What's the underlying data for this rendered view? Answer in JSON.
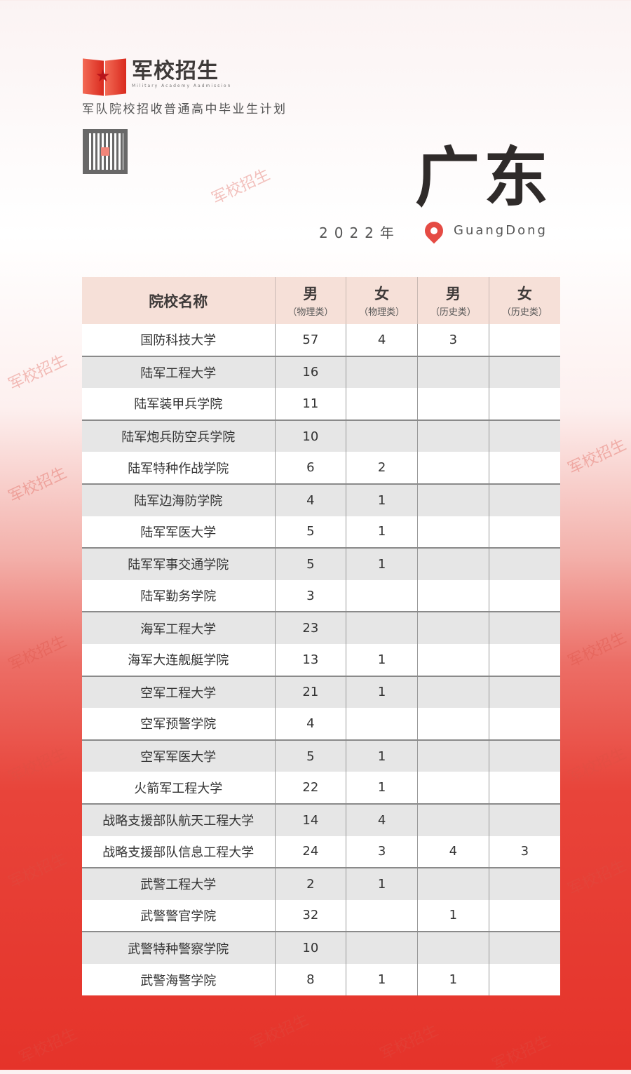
{
  "brand": {
    "name": "军校招生",
    "english": "Military Academy Aadmission",
    "subtitle": "军队院校招收普通高中毕业生计划"
  },
  "province": {
    "name": "广东",
    "year": "2022年",
    "english": "GuangDong"
  },
  "colors": {
    "accent": "#e5332a",
    "header_bg": "#f6e0d8"
  },
  "table": {
    "headers": [
      {
        "label": "院校名称"
      },
      {
        "gender": "男",
        "track": "（物理类）"
      },
      {
        "gender": "女",
        "track": "（物理类）"
      },
      {
        "gender": "男",
        "track": "（历史类）"
      },
      {
        "gender": "女",
        "track": "（历史类）"
      }
    ],
    "rows": [
      [
        "国防科技大学",
        "57",
        "4",
        "3",
        ""
      ],
      [
        "陆军工程大学",
        "16",
        "",
        "",
        ""
      ],
      [
        "陆军装甲兵学院",
        "11",
        "",
        "",
        ""
      ],
      [
        "陆军炮兵防空兵学院",
        "10",
        "",
        "",
        ""
      ],
      [
        "陆军特种作战学院",
        "6",
        "2",
        "",
        ""
      ],
      [
        "陆军边海防学院",
        "4",
        "1",
        "",
        ""
      ],
      [
        "陆军军医大学",
        "5",
        "1",
        "",
        ""
      ],
      [
        "陆军军事交通学院",
        "5",
        "1",
        "",
        ""
      ],
      [
        "陆军勤务学院",
        "3",
        "",
        "",
        ""
      ],
      [
        "海军工程大学",
        "23",
        "",
        "",
        ""
      ],
      [
        "海军大连舰艇学院",
        "13",
        "1",
        "",
        ""
      ],
      [
        "空军工程大学",
        "21",
        "1",
        "",
        ""
      ],
      [
        "空军预警学院",
        "4",
        "",
        "",
        ""
      ],
      [
        "空军军医大学",
        "5",
        "1",
        "",
        ""
      ],
      [
        "火箭军工程大学",
        "22",
        "1",
        "",
        ""
      ],
      [
        "战略支援部队航天工程大学",
        "14",
        "4",
        "",
        ""
      ],
      [
        "战略支援部队信息工程大学",
        "24",
        "3",
        "4",
        "3"
      ],
      [
        "武警工程大学",
        "2",
        "1",
        "",
        ""
      ],
      [
        "武警警官学院",
        "32",
        "",
        "1",
        ""
      ],
      [
        "武警特种警察学院",
        "10",
        "",
        "",
        ""
      ],
      [
        "武警海警学院",
        "8",
        "1",
        "1",
        ""
      ]
    ]
  },
  "watermark": "军校招生"
}
